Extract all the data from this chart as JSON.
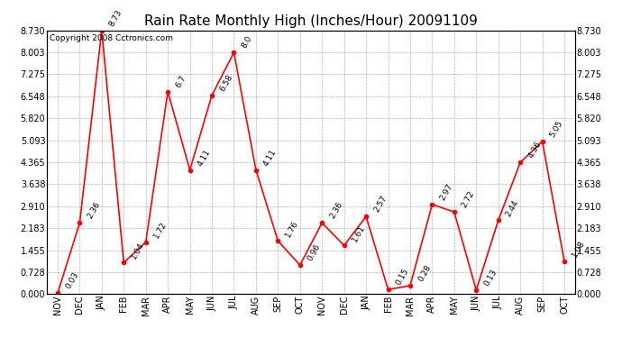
{
  "title": "Rain Rate Monthly High (Inches/Hour) 20091109",
  "copyright": "Copyright 2008 Cctronics.com",
  "months": [
    "NOV",
    "DEC",
    "JAN",
    "FEB",
    "MAR",
    "APR",
    "MAY",
    "JUN",
    "JUL",
    "AUG",
    "SEP",
    "OCT",
    "NOV",
    "DEC",
    "JAN",
    "FEB",
    "MAR",
    "APR",
    "MAY",
    "JUN",
    "JUL",
    "AUG",
    "SEP",
    "OCT"
  ],
  "values": [
    0.03,
    2.36,
    8.73,
    1.04,
    1.72,
    6.7,
    4.11,
    6.58,
    8.0,
    4.11,
    1.76,
    0.96,
    2.36,
    1.61,
    2.57,
    0.15,
    0.28,
    2.97,
    2.72,
    0.13,
    2.44,
    4.36,
    5.05,
    1.08
  ],
  "ymax": 8.73,
  "yticks": [
    0.0,
    0.728,
    1.455,
    2.183,
    2.91,
    3.638,
    4.365,
    5.093,
    5.82,
    6.548,
    7.275,
    8.003,
    8.73
  ],
  "line_color": "red",
  "marker_color": "red",
  "bg_color": "white",
  "grid_color": "#aaaaaa",
  "title_fontsize": 11,
  "label_fontsize": 7,
  "annot_fontsize": 6.5,
  "copyright_fontsize": 6.5
}
